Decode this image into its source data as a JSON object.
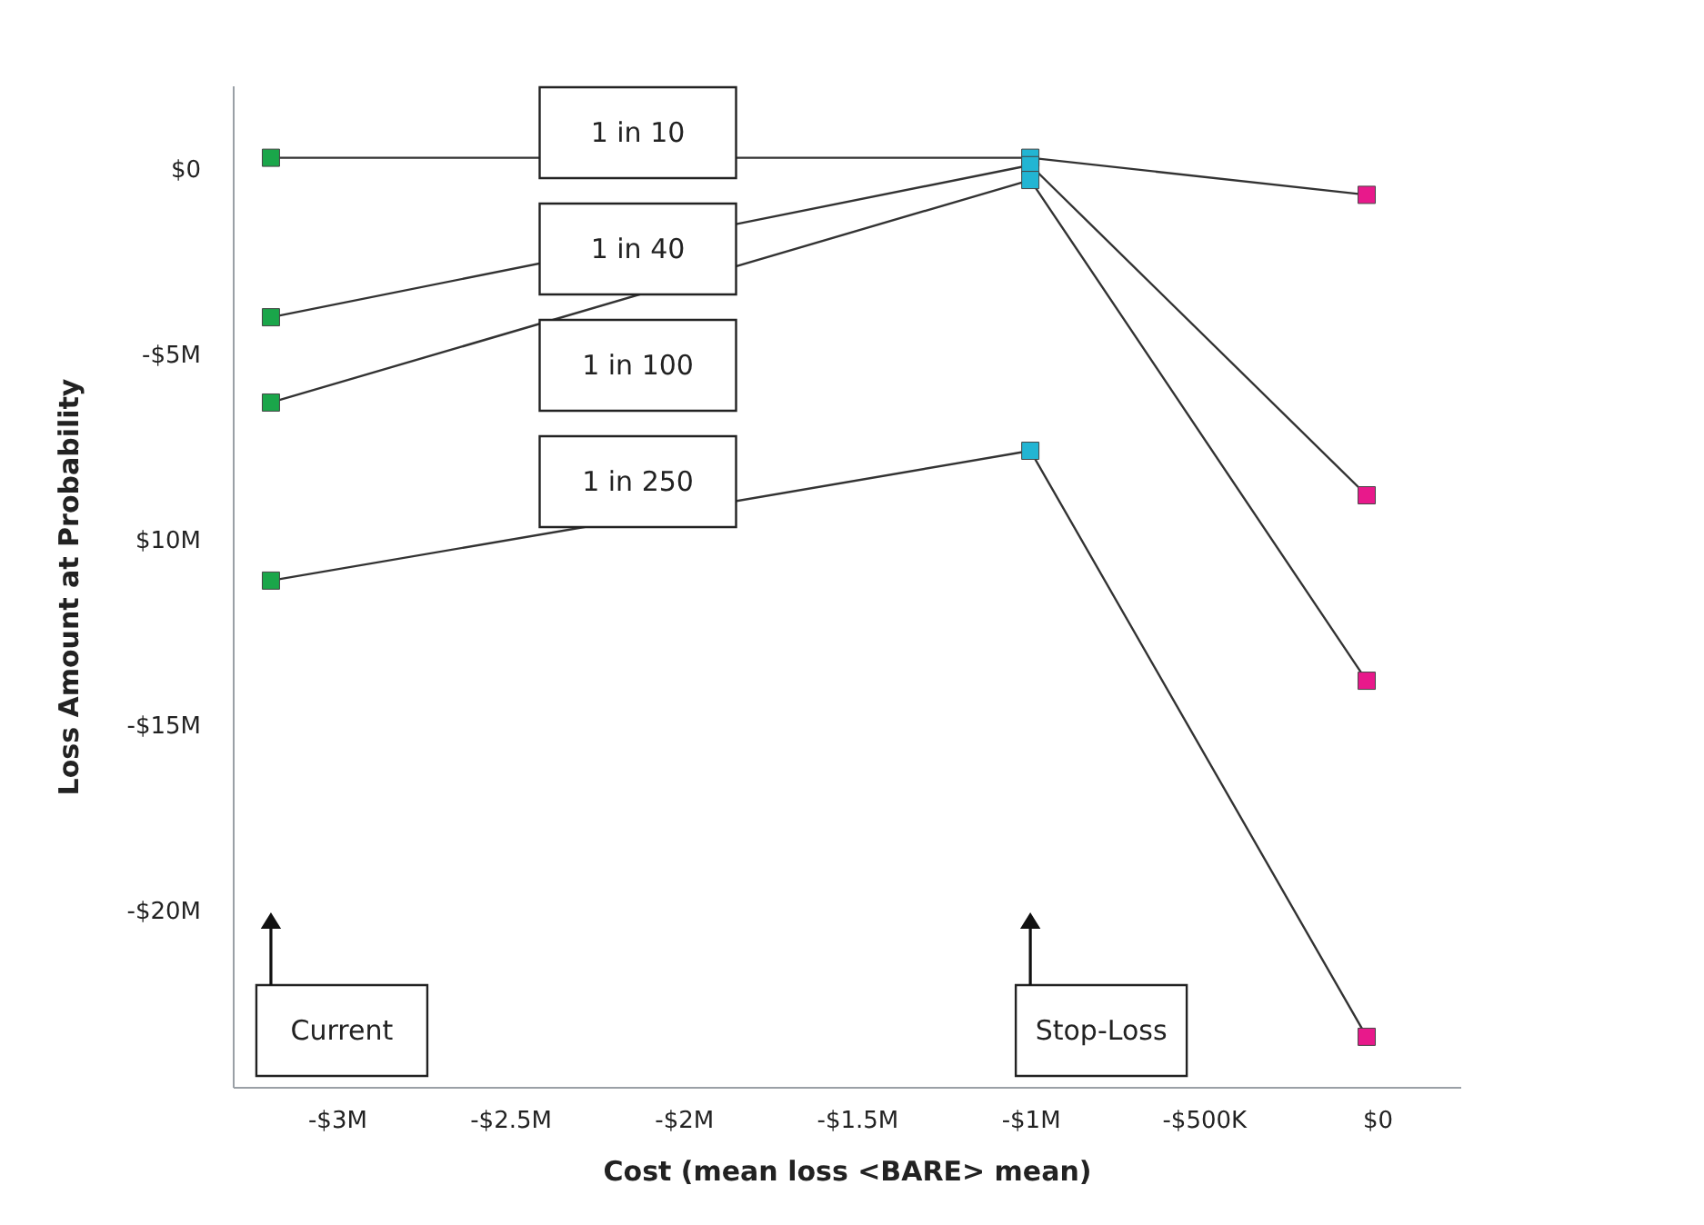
{
  "chart_data": {
    "type": "line",
    "xlabel": "Cost (mean loss <BARE> mean)",
    "ylabel": "Loss Amount at Probability",
    "xlim": [
      -3300000,
      240000
    ],
    "xticks": [
      {
        "value": -3000000,
        "label": "-$3M"
      },
      {
        "value": -2500000,
        "label": "-$2.5M"
      },
      {
        "value": -2000000,
        "label": "-$2M"
      },
      {
        "value": -1500000,
        "label": "-$1.5M"
      },
      {
        "value": -1000000,
        "label": "-$1M"
      },
      {
        "value": -500000,
        "label": "-$500K"
      },
      {
        "value": 0,
        "label": "$0"
      }
    ],
    "ylim": [
      -24750000,
      2250000
    ],
    "yticks": [
      {
        "value": 0,
        "label": "$0"
      },
      {
        "value": -5000000,
        "label": "-$5M"
      },
      {
        "value": -10000000,
        "label": "$10M"
      },
      {
        "value": -15000000,
        "label": "-$15M"
      },
      {
        "value": -20000000,
        "label": "-$20M"
      }
    ],
    "grid": false,
    "marker": "square",
    "line_style": "solid",
    "series": [
      {
        "name": "1 in 10",
        "color": "#333333",
        "colors": [
          "#1aa64a",
          "#22b5d3",
          "#e8198b"
        ],
        "x": [
          -3190000,
          -1000000,
          -30000
        ],
        "values": [
          300000,
          300000,
          -700000
        ]
      },
      {
        "name": "1 in 40",
        "color": "#333333",
        "colors": [
          "#1aa64a",
          "#22b5d3",
          "#e8198b"
        ],
        "x": [
          -3190000,
          -1000000,
          -30000
        ],
        "values": [
          -4000000,
          100000,
          -8800000
        ]
      },
      {
        "name": "1 in 100",
        "color": "#333333",
        "colors": [
          "#1aa64a",
          "#22b5d3",
          "#e8198b"
        ],
        "x": [
          -3190000,
          -1000000,
          -30000
        ],
        "values": [
          -6300000,
          -300000,
          -13800000
        ]
      },
      {
        "name": "1 in 250",
        "color": "#333333",
        "colors": [
          "#1aa64a",
          "#22b5d3",
          "#e8198b"
        ],
        "x": [
          -3190000,
          -1000000,
          -30000
        ],
        "values": [
          -11100000,
          -7600000,
          -23400000
        ]
      }
    ],
    "annotations": [
      "Current",
      "Stop-Loss"
    ]
  }
}
